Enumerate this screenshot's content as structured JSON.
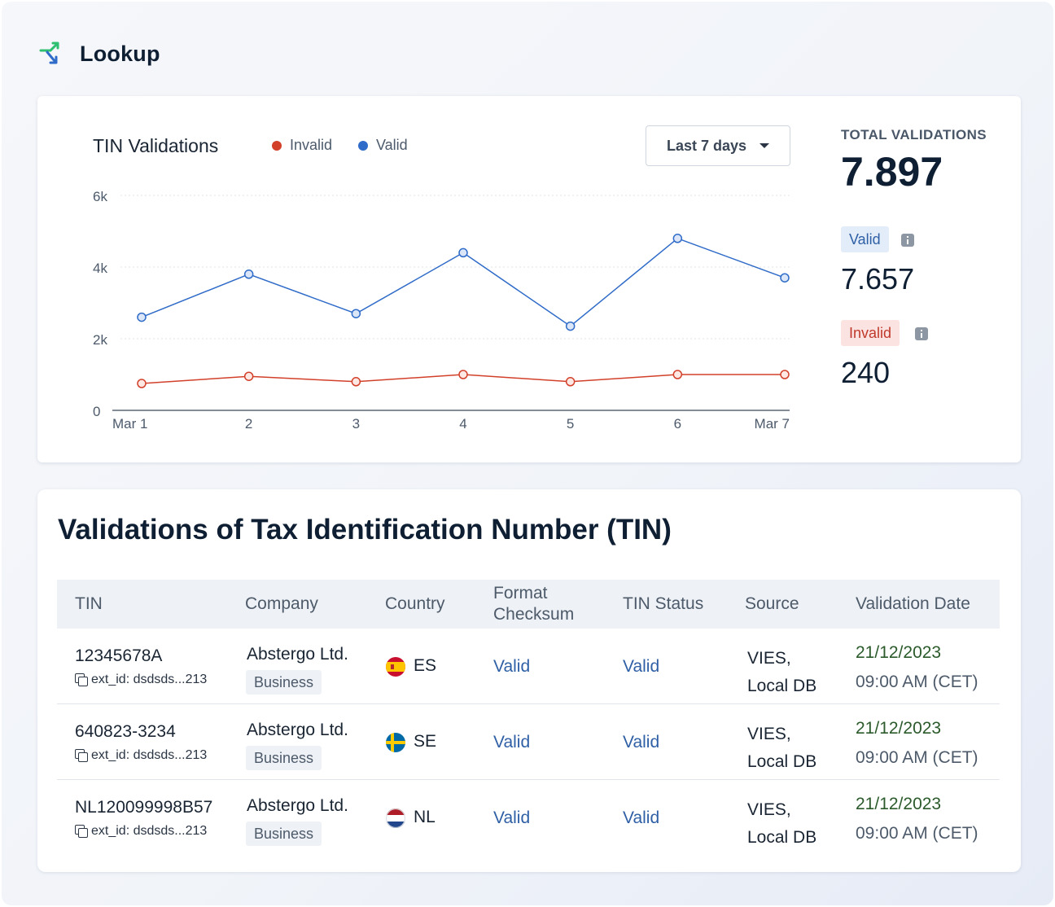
{
  "app": {
    "title": "Lookup"
  },
  "chart_card": {
    "range_label": "Last 7 days",
    "stats": {
      "total_label": "TOTAL VALIDATIONS",
      "total": "7.897",
      "valid_label": "Valid",
      "valid": "7.657",
      "invalid_label": "Invalid",
      "invalid": "240"
    }
  },
  "chart_data": {
    "type": "line",
    "title": "TIN Validations",
    "categories": [
      "Mar 1",
      "2",
      "3",
      "4",
      "5",
      "6",
      "Mar 7"
    ],
    "y_ticks": [
      "0",
      "2k",
      "4k",
      "6k"
    ],
    "ylim": [
      0,
      6000
    ],
    "grid": true,
    "legend_position": "top",
    "series": [
      {
        "name": "Invalid",
        "color": "#d2402a",
        "values": [
          750,
          950,
          800,
          1000,
          800,
          1000,
          1000
        ]
      },
      {
        "name": "Valid",
        "color": "#2f6bc8",
        "values": [
          2600,
          3800,
          2700,
          4400,
          2350,
          4800,
          3700
        ]
      }
    ]
  },
  "table": {
    "title": "Validations of Tax Identification Number (TIN)",
    "headers": {
      "tin": "TIN",
      "company": "Company",
      "country": "Country",
      "format_1": "Format",
      "format_2": "Checksum",
      "status": "TIN Status",
      "source": "Source",
      "date": "Validation Date"
    },
    "rows": [
      {
        "tin": "12345678A",
        "ext_id": "ext_id: dsdsds...213",
        "company": "Abstergo Ltd.",
        "company_type": "Business",
        "country": "ES",
        "flag": "spain-flag",
        "format": "Valid",
        "status": "Valid",
        "source_1": "VIES,",
        "source_2": "Local DB",
        "date": "21/12/2023",
        "time": "09:00 AM (CET)"
      },
      {
        "tin": "640823-3234",
        "ext_id": "ext_id: dsdsds...213",
        "company": "Abstergo Ltd.",
        "company_type": "Business",
        "country": "SE",
        "flag": "sweden-flag",
        "format": "Valid",
        "status": "Valid",
        "source_1": "VIES,",
        "source_2": "Local DB",
        "date": "21/12/2023",
        "time": "09:00 AM (CET)"
      },
      {
        "tin": "NL120099998B57",
        "ext_id": "ext_id: dsdsds...213",
        "company": "Abstergo Ltd.",
        "company_type": "Business",
        "country": "NL",
        "flag": "netherlands-flag",
        "format": "Valid",
        "status": "Valid",
        "source_1": "VIES,",
        "source_2": "Local DB",
        "date": "21/12/2023",
        "time": "09:00 AM (CET)"
      }
    ]
  }
}
